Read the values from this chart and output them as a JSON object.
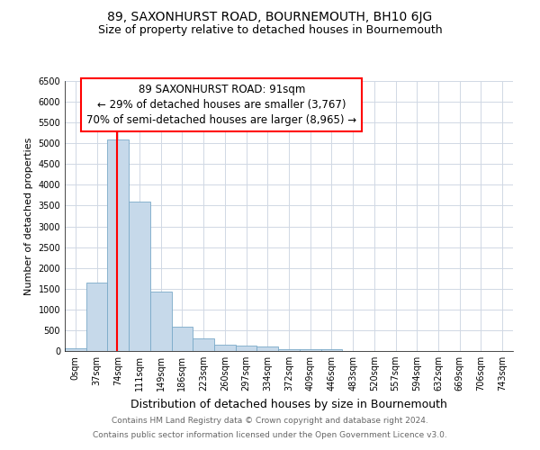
{
  "title": "89, SAXONHURST ROAD, BOURNEMOUTH, BH10 6JG",
  "subtitle": "Size of property relative to detached houses in Bournemouth",
  "xlabel": "Distribution of detached houses by size in Bournemouth",
  "ylabel": "Number of detached properties",
  "categories": [
    "0sqm",
    "37sqm",
    "74sqm",
    "111sqm",
    "149sqm",
    "186sqm",
    "223sqm",
    "260sqm",
    "297sqm",
    "334sqm",
    "372sqm",
    "409sqm",
    "446sqm",
    "483sqm",
    "520sqm",
    "557sqm",
    "594sqm",
    "632sqm",
    "669sqm",
    "706sqm",
    "743sqm"
  ],
  "values": [
    75,
    1650,
    5100,
    3600,
    1420,
    580,
    300,
    150,
    120,
    100,
    50,
    50,
    50,
    0,
    0,
    0,
    0,
    0,
    0,
    0,
    0
  ],
  "bar_color": "#c6d9ea",
  "bar_edge_color": "#7aaac8",
  "annotation_line1": "89 SAXONHURST ROAD: 91sqm",
  "annotation_line2": "← 29% of detached houses are smaller (3,767)",
  "annotation_line3": "70% of semi-detached houses are larger (8,965) →",
  "ylim": [
    0,
    6500
  ],
  "yticks": [
    0,
    500,
    1000,
    1500,
    2000,
    2500,
    3000,
    3500,
    4000,
    4500,
    5000,
    5500,
    6000,
    6500
  ],
  "footnote1": "Contains HM Land Registry data © Crown copyright and database right 2024.",
  "footnote2": "Contains public sector information licensed under the Open Government Licence v3.0.",
  "title_fontsize": 10,
  "subtitle_fontsize": 9,
  "xlabel_fontsize": 9,
  "ylabel_fontsize": 8,
  "tick_fontsize": 7,
  "annot_fontsize": 8.5,
  "footnote_fontsize": 6.5,
  "background_color": "#ffffff",
  "grid_color": "#d0d8e4"
}
